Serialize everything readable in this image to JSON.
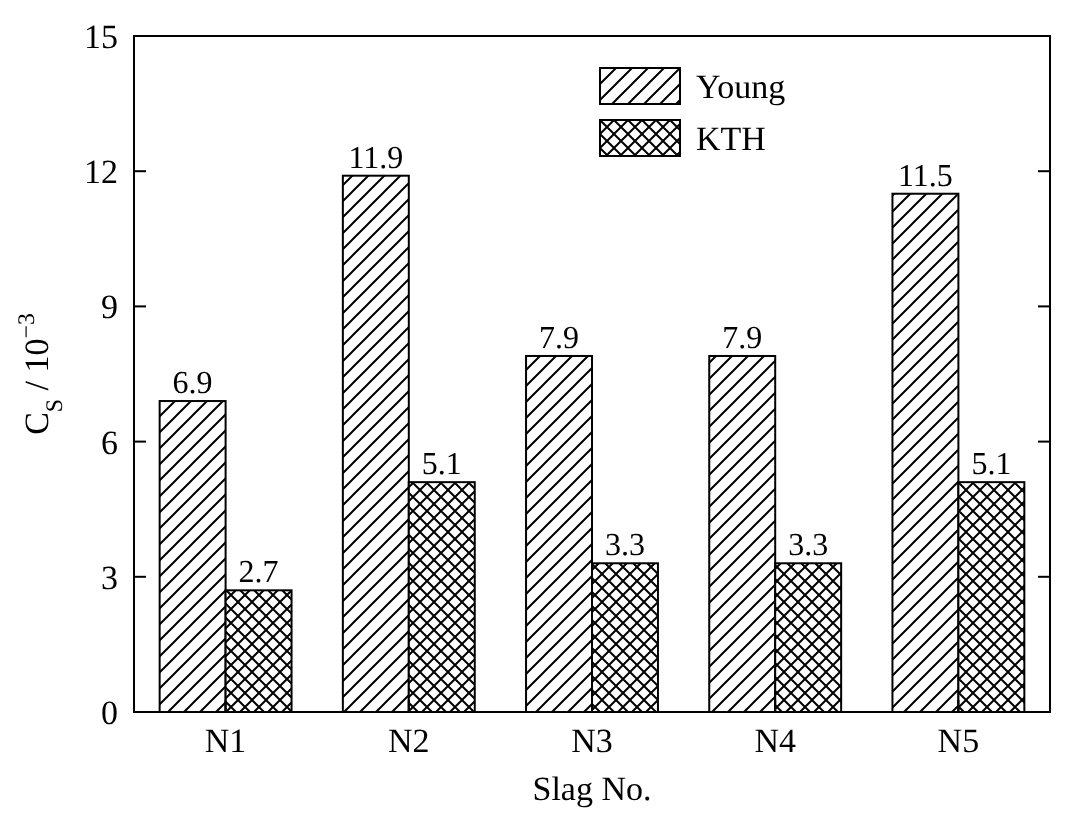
{
  "chart_data": {
    "type": "bar",
    "xlabel": "Slag No.",
    "ylabel": "C$_{S}$ / 10$^{−3}$",
    "categories": [
      "N1",
      "N2",
      "N3",
      "N4",
      "N5"
    ],
    "series": [
      {
        "name": "Young",
        "color": "#000000",
        "values": [
          6.9,
          11.9,
          7.9,
          7.9,
          11.5
        ]
      },
      {
        "name": "KTH",
        "color": "#000000",
        "values": [
          2.7,
          5.1,
          3.3,
          3.3,
          5.1
        ]
      }
    ],
    "ylim": [
      0,
      15
    ],
    "yticks": [
      0,
      3,
      6,
      9,
      12,
      15
    ],
    "data_labels": true,
    "legend": "top right",
    "grid": false
  }
}
